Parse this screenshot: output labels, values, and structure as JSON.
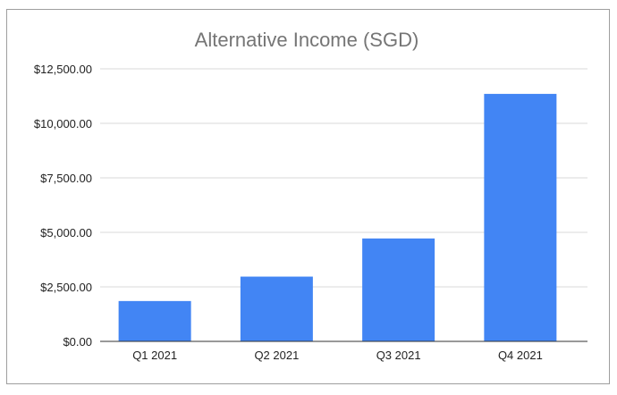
{
  "chart_data": {
    "type": "bar",
    "title": "Alternative Income (SGD)",
    "categories": [
      "Q1 2021",
      "Q2 2021",
      "Q3 2021",
      "Q4 2021"
    ],
    "values": [
      1850,
      2970,
      4720,
      11350
    ],
    "ylim": [
      0,
      12500
    ],
    "yticks": [
      0,
      2500,
      5000,
      7500,
      10000,
      12500
    ],
    "ytick_labels": [
      "$0.00",
      "$2,500.00",
      "$5,000.00",
      "$7,500.00",
      "$10,000.00",
      "$12,500.00"
    ],
    "xlabel": "",
    "ylabel": "",
    "grid": true,
    "legend": "none",
    "bar_color": "#4285f4"
  }
}
